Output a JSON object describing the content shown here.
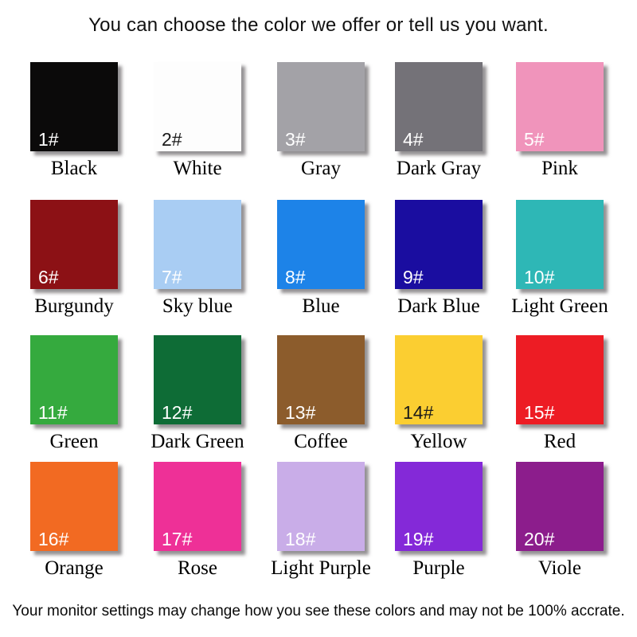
{
  "title": "You can choose the color we offer or tell us you want.",
  "footer": "Your monitor settings may change how you see these colors and may not be 100% accrate.",
  "swatches": [
    {
      "number": "1#",
      "name": "Black",
      "hex": "#0b0a0a",
      "label_color": "#ffffff"
    },
    {
      "number": "2#",
      "name": "White",
      "hex": "#fdfdfd",
      "label_color": "#1a1a1a"
    },
    {
      "number": "3#",
      "name": "Gray",
      "hex": "#a3a2a7",
      "label_color": "#ffffff"
    },
    {
      "number": "4#",
      "name": "Dark Gray",
      "hex": "#747278",
      "label_color": "#ffffff"
    },
    {
      "number": "5#",
      "name": "Pink",
      "hex": "#f094bb",
      "label_color": "#ffffff"
    },
    {
      "number": "6#",
      "name": "Burgundy",
      "hex": "#8c1115",
      "label_color": "#ffffff"
    },
    {
      "number": "7#",
      "name": "Sky blue",
      "hex": "#a9cdf3",
      "label_color": "#ffffff"
    },
    {
      "number": "8#",
      "name": "Blue",
      "hex": "#1d83e8",
      "label_color": "#ffffff"
    },
    {
      "number": "9#",
      "name": "Dark Blue",
      "hex": "#1a0da0",
      "label_color": "#ffffff"
    },
    {
      "number": "10#",
      "name": "Light Green",
      "hex": "#2eb7b6",
      "label_color": "#ffffff"
    },
    {
      "number": "11#",
      "name": "Green",
      "hex": "#35aa3e",
      "label_color": "#ffffff"
    },
    {
      "number": "12#",
      "name": "Dark Green",
      "hex": "#0e6c36",
      "label_color": "#ffffff"
    },
    {
      "number": "13#",
      "name": "Coffee",
      "hex": "#8c5c2c",
      "label_color": "#ffffff"
    },
    {
      "number": "14#",
      "name": "Yellow",
      "hex": "#fbce31",
      "label_color": "#1a1a1a"
    },
    {
      "number": "15#",
      "name": "Red",
      "hex": "#ed1c24",
      "label_color": "#ffffff"
    },
    {
      "number": "16#",
      "name": "Orange",
      "hex": "#f26a22",
      "label_color": "#ffffff"
    },
    {
      "number": "17#",
      "name": "Rose",
      "hex": "#ee3097",
      "label_color": "#ffffff"
    },
    {
      "number": "18#",
      "name": "Light Purple",
      "hex": "#c9ade8",
      "label_color": "#ffffff"
    },
    {
      "number": "19#",
      "name": "Purple",
      "hex": "#8429d8",
      "label_color": "#ffffff"
    },
    {
      "number": "20#",
      "name": "Viole",
      "hex": "#8c1d8c",
      "label_color": "#ffffff"
    }
  ]
}
